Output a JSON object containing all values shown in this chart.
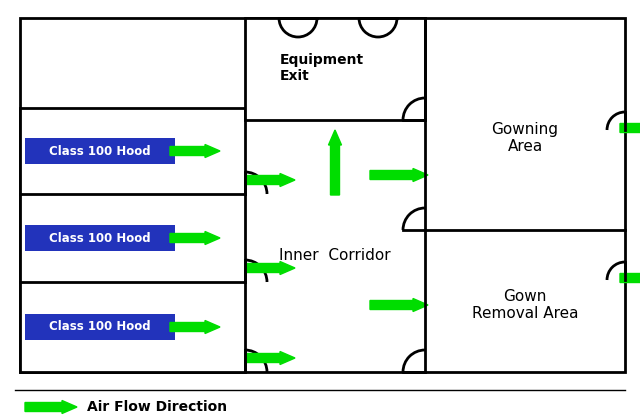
{
  "fig_width": 6.4,
  "fig_height": 4.19,
  "dpi": 100,
  "bg_color": "#ffffff",
  "arrow_color": "#00dd00",
  "hood_bg_color": "#2233bb",
  "hood_text_color": "#ffffff",
  "room_text_color": "#000000",
  "line_color": "#000000",
  "lw": 2.0,
  "legend_arrow_text": "Air Flow Direction",
  "rooms": {
    "inner_corridor": {
      "label": "Inner  Corridor"
    },
    "gowning_area": {
      "label": "Gowning\nArea"
    },
    "gown_removal_area": {
      "label": "Gown\nRemoval Area"
    },
    "equipment_exit": {
      "label": "Equipment\nExit"
    }
  },
  "hoods": [
    {
      "label": "Class 100 Hood"
    },
    {
      "label": "Class 100 Hood"
    },
    {
      "label": "Class 100 Hood"
    }
  ]
}
